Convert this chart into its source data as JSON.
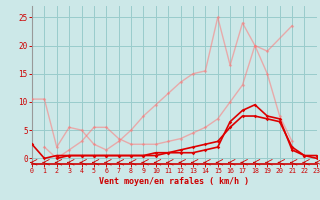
{
  "x": [
    0,
    1,
    2,
    3,
    4,
    5,
    6,
    7,
    8,
    9,
    10,
    11,
    12,
    13,
    14,
    15,
    16,
    17,
    18,
    19,
    20,
    21,
    22,
    23
  ],
  "series": [
    {
      "name": "light1",
      "color": "#ff7777",
      "alpha": 0.55,
      "lw": 1.0,
      "y": [
        10.5,
        10.5,
        2.0,
        5.5,
        5.0,
        2.5,
        1.5,
        3.0,
        5.0,
        7.5,
        9.5,
        11.5,
        13.5,
        15.0,
        15.5,
        25.0,
        16.5,
        24.0,
        20.0,
        19.0,
        null,
        23.5,
        null,
        null
      ]
    },
    {
      "name": "light2",
      "color": "#ff7777",
      "alpha": 0.55,
      "lw": 1.0,
      "y": [
        null,
        2.0,
        0.0,
        1.5,
        3.0,
        5.5,
        5.5,
        3.5,
        2.5,
        2.5,
        2.5,
        3.0,
        3.5,
        4.5,
        5.5,
        7.0,
        10.0,
        13.0,
        20.0,
        15.0,
        7.5,
        3.0,
        null,
        null
      ]
    },
    {
      "name": "dark1",
      "color": "#dd0000",
      "alpha": 1.0,
      "lw": 1.2,
      "y": [
        2.5,
        0.0,
        0.5,
        0.5,
        0.5,
        0.5,
        0.5,
        0.5,
        0.5,
        0.5,
        0.5,
        1.0,
        1.0,
        1.0,
        1.5,
        2.0,
        6.5,
        8.5,
        9.5,
        7.5,
        7.0,
        1.5,
        0.5,
        0.0
      ]
    },
    {
      "name": "dark2",
      "color": "#dd0000",
      "alpha": 1.0,
      "lw": 1.2,
      "y": [
        null,
        null,
        0.0,
        0.5,
        0.5,
        0.5,
        0.5,
        0.5,
        0.5,
        0.5,
        1.0,
        1.0,
        1.5,
        2.0,
        2.5,
        3.0,
        5.5,
        7.5,
        7.5,
        7.0,
        6.5,
        2.0,
        0.5,
        0.5
      ]
    }
  ],
  "arrows_x": [
    0,
    1,
    2,
    3,
    4,
    5,
    6,
    7,
    8,
    9,
    10,
    11,
    12,
    13,
    14,
    15,
    16,
    17,
    18,
    19,
    20,
    21,
    22,
    23
  ],
  "xlim": [
    0,
    23
  ],
  "ylim": [
    -1.0,
    27
  ],
  "yticks": [
    0,
    5,
    10,
    15,
    20,
    25
  ],
  "xticks": [
    0,
    1,
    2,
    3,
    4,
    5,
    6,
    7,
    8,
    9,
    10,
    11,
    12,
    13,
    14,
    15,
    16,
    17,
    18,
    19,
    20,
    21,
    22,
    23
  ],
  "xlabel": "Vent moyen/en rafales ( km/h )",
  "bg_color": "#cce8e8",
  "grid_color": "#99cccc",
  "axis_color": "#cc0000",
  "label_color": "#cc0000",
  "tick_color": "#cc0000",
  "arrow_color": "#cc0000"
}
